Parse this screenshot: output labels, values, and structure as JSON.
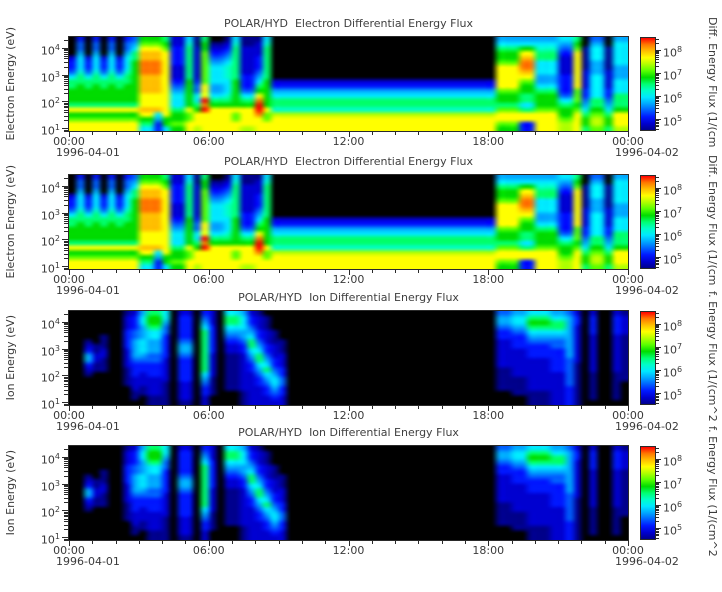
{
  "figure": {
    "bg": "#ffffff",
    "text_color": "#3a3a3a"
  },
  "panels": [
    {
      "title": "POLAR/HYD  Electron Differential Energy Flux",
      "ylabel": "Electron Energy (eV)",
      "cbar_label": "Diff. Energy Flux (1/(cm",
      "grid": "electron"
    },
    {
      "title": "POLAR/HYD  Electron Differential Energy Flux",
      "ylabel": "Electron Energy (eV)",
      "cbar_label": "Diff. Energy Flux (1/(cm",
      "grid": "electron"
    },
    {
      "title": "POLAR/HYD  Ion Differential Energy Flux",
      "ylabel": "Ion Energy (eV)",
      "cbar_label": "f. Energy Flux (1/(cm^2",
      "grid": "ion"
    },
    {
      "title": "POLAR/HYD  Ion Differential Energy Flux",
      "ylabel": "Ion Energy (eV)",
      "cbar_label": "f. Energy Flux (1/(cm^2",
      "grid": "ion"
    }
  ],
  "axis": {
    "x_tick_labels": [
      "00:00",
      "06:00",
      "12:00",
      "18:00",
      "00:00"
    ],
    "x_major_hours": [
      0,
      6,
      12,
      18,
      24
    ],
    "x_minor_step_hours": 1,
    "date_left": "1996-04-01",
    "date_right": "1996-04-02",
    "y_log_min": 0.9,
    "y_log_max": 4.4,
    "y_decades": [
      4,
      3,
      2,
      1
    ],
    "cbar_log_min": 4.5,
    "cbar_log_max": 8.55,
    "cbar_decades": [
      8,
      7,
      6,
      5
    ]
  },
  "chart_data": {
    "type": "heatmap",
    "title_electron": "POLAR/HYD  Electron Differential Energy Flux",
    "title_ion": "POLAR/HYD  Ion Differential Energy Flux",
    "x_axis": "Time (UT), 1996-04-01 00:00 to 1996-04-02 00:00",
    "y_axis": "Energy (eV), log scale 10^0.9 (bottom) to 10^4.4 (top)",
    "flux_units": "Diff. Energy Flux (1/(cm^2 s sr keV))",
    "flux_levels": "hex char 0-f per cell; 0 = no flux (black); 1..15 map log10(flux) 4.5..8.5 onto blue->red rainbow",
    "time_bins": 72,
    "energy_bins": 20,
    "row_order": "top (high energy) to bottom (low energy)",
    "colormap": [
      "#000000",
      "#00008c",
      "#0000d0",
      "#0018ff",
      "#0060ff",
      "#00a8ff",
      "#00e8ff",
      "#00ffc8",
      "#00ff70",
      "#00dc00",
      "#58ff00",
      "#b0ff00",
      "#ffff00",
      "#ffc000",
      "#ff7800",
      "#ff0000"
    ],
    "grids": {
      "electron": [
        "000023346889998c9acc",
        "344566678899998c9acc",
        "000023346889998c9acc",
        "344566678899998c9acc",
        "000023346889998c9acc",
        "344566678899998c9acc",
        "000023346889998c9acc",
        "344566678899998c9acc",
        "456889999999998c9acc",
        "9acddeeeddddcccdc986",
        "9acddeeeddddcccdc986",
        "9acddeeeddddcccd6533",
        "89acccccccccccccc996",
        "223333222345666899a9",
        "223333222345666899a9",
        "678888888999999caacc",
        "1122222223446689cccb",
        "899aaaaaaacccfefcccc",
        "012345666655689ccccc",
        "012345666655689ccccc",
        "123456777666789ccccc",
        "678888888999999caacc",
        "112222223334689ccccb",
        "112222223334689ccccb",
        "122233345689ceffeccc",
        "678888888999999caacc",
        "0000000002356887bccc",
        "0000000002356887bccc",
        "0000000002356887bccc",
        "0000000002356887bccc",
        "0000000002356887bccc",
        "0000000002356887bccc",
        "0000000002356887bccc",
        "0000000002356887bccc",
        "0000000002356887bccc",
        "0000000002356887bccc",
        "0000000002356887bccc",
        "0000000002356887bccc",
        "0000000002356887bccc",
        "0000000002356887bccc",
        "0000000002356887bccc",
        "0000000002356887bccc",
        "0000000002356887bccc",
        "0000000002356887bccc",
        "0000000002356887bccc",
        "0000000002356887bccc",
        "0000000002356887bccc",
        "0000000002356887bccc",
        "0000000002356887bccc",
        "0000000002356887bccc",
        "0000000002356887bccc",
        "0000000002356887bccc",
        "0000000002356887bccc",
        "0000000002356887bccc",
        "0000000002356887bccc",
        "56899accccca998acca9",
        "56899accccca998acca9",
        "56899accccca998acca9",
        "569cdeedca998868cc33",
        "569cdeedca998868cc33",
        "567886665568999acccc",
        "567886665568999acccc",
        "567886665568999acccc",
        "65432222333346899abb",
        "65432222333346899abb",
        "89accccccccaaa9acccc",
        "00111112222334568998",
        "4566655566666889abba",
        "4566655566666889abba",
        "00111112222334568998",
        "5666665556668889cccb",
        "5666665556668889cccb"
      ],
      "ion": [
        "00000000000000000000",
        "00000000000000000000",
        "00000012355321000000",
        "00000001122110000000",
        "00000111221110000000",
        "00000000000000000000",
        "00000000000000000000",
        "12223333222211110000",
        "23334455554333222110",
        "56655566654332221100",
        "89986655544333222211",
        "89986655544333222211",
        "66544333332222211111",
        "00000000000000000000",
        "23333345543333322221",
        "23333345543333322221",
        "00000000000000000000",
        "34568888888886543322",
        "22233333322222111100",
        "00000000000000000000",
        "68865432211111111000",
        "68865432211111111000",
        "56665543322222222111",
        "23345688654332222222",
        "12223345688654332222",
        "01112223345686543322",
        "00001112223345665432",
        "00000011122233443322",
        "00000000000000000000",
        "00000000000000000000",
        "00000000000000000000",
        "00000000000000000000",
        "00000000000000000000",
        "00000000000000000000",
        "00000000000000000000",
        "00000000000000000000",
        "00000000000000000000",
        "00000000000000000000",
        "00000000000000000000",
        "00000000000000000000",
        "00000000000000000000",
        "00000000000000000000",
        "00000000000000000000",
        "00000000000000000000",
        "00000000000000000000",
        "00000000000000000000",
        "00000000000000000000",
        "00000000000000000000",
        "00000000000000000000",
        "00000000000000000000",
        "00000000000000000000",
        "00000000000000000000",
        "00000000000000000000",
        "00000000000000000000",
        "00000000000000000000",
        "45543322222211111000",
        "45543322222211111000",
        "56654333222222111100",
        "56654333222222111100",
        "68986543332222222111",
        "68986543332222222111",
        "68986543332222222111",
        "56886544333332222222",
        "56886544333332222222",
        "45555555554444443333",
        "23322222222111111111",
        "00000000000000000000",
        "23333222222221111110",
        "00000000000000000000",
        "00000000000000000000",
        "23333222222221111110",
        "12222111111111100000"
      ]
    }
  }
}
